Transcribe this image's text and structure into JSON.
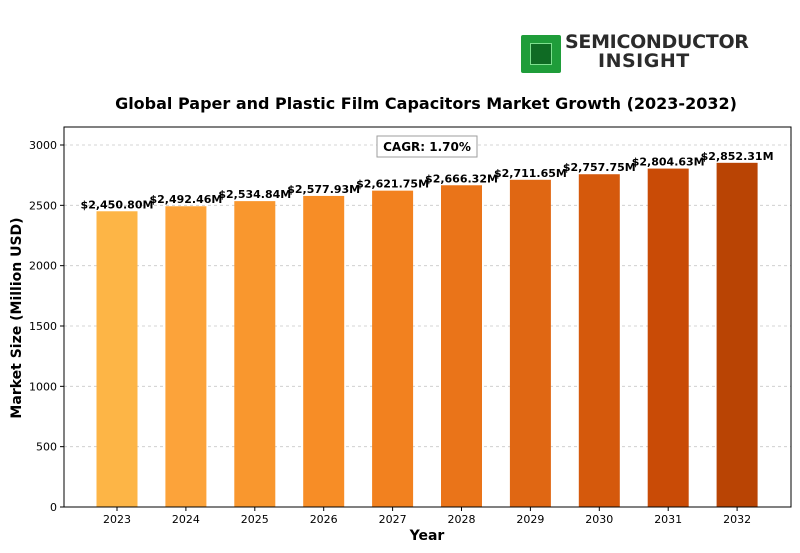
{
  "logo": {
    "line1": "SEMICONDUCTOR",
    "line2": "INSIGHT"
  },
  "chart_data": {
    "type": "bar",
    "title": "Global Paper and Plastic Film Capacitors Market Growth (2023-2032)",
    "xlabel": "Year",
    "ylabel": "Market Size (Million USD)",
    "ylim": [
      0,
      3150
    ],
    "yticks": [
      0,
      500,
      1000,
      1500,
      2000,
      2500,
      3000
    ],
    "grid": true,
    "annotation": "CAGR: 1.70%",
    "categories": [
      "2023",
      "2024",
      "2025",
      "2026",
      "2027",
      "2028",
      "2029",
      "2030",
      "2031",
      "2032"
    ],
    "values": [
      2450.8,
      2492.46,
      2534.84,
      2577.93,
      2621.75,
      2666.32,
      2711.65,
      2757.75,
      2804.63,
      2852.31
    ],
    "data_labels": [
      "$2,450.80M",
      "$2,492.46M",
      "$2,534.84M",
      "$2,577.93M",
      "$2,621.75M",
      "$2,666.32M",
      "$2,711.65M",
      "$2,757.75M",
      "$2,804.63M",
      "$2,852.31M"
    ],
    "colors": [
      "#fdb546",
      "#fca33a",
      "#f9972e",
      "#f78d26",
      "#f2811f",
      "#ea7419",
      "#e06713",
      "#d5590c",
      "#c94b06",
      "#b94404"
    ]
  }
}
